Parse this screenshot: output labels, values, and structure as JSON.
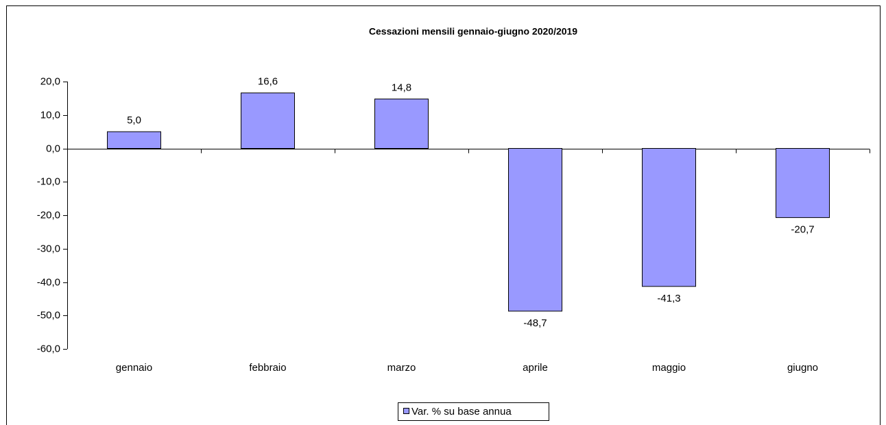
{
  "chart_data": {
    "type": "bar",
    "title": "Cessazioni mensili gennaio-giugno  2020/2019",
    "categories": [
      "gennaio",
      "febbraio",
      "marzo",
      "aprile",
      "maggio",
      "giugno"
    ],
    "series": [
      {
        "name": "Var. % su base annua",
        "color": "#9999ff",
        "values": [
          5.0,
          16.6,
          14.8,
          -48.7,
          -41.3,
          -20.7
        ],
        "value_labels": [
          "5,0",
          "16,6",
          "14,8",
          "-48,7",
          "-41,3",
          "-20,7"
        ]
      }
    ],
    "ylim": [
      -60,
      20
    ],
    "yticks": [
      {
        "value": 20,
        "label": "20,0"
      },
      {
        "value": 10,
        "label": "10,0"
      },
      {
        "value": 0,
        "label": "0,0"
      },
      {
        "value": -10,
        "label": "-10,0"
      },
      {
        "value": -20,
        "label": "-20,0"
      },
      {
        "value": -30,
        "label": "-30,0"
      },
      {
        "value": -40,
        "label": "-40,0"
      },
      {
        "value": -50,
        "label": "-50,0"
      },
      {
        "value": -60,
        "label": "-60,0"
      }
    ],
    "legend": "bottom"
  }
}
